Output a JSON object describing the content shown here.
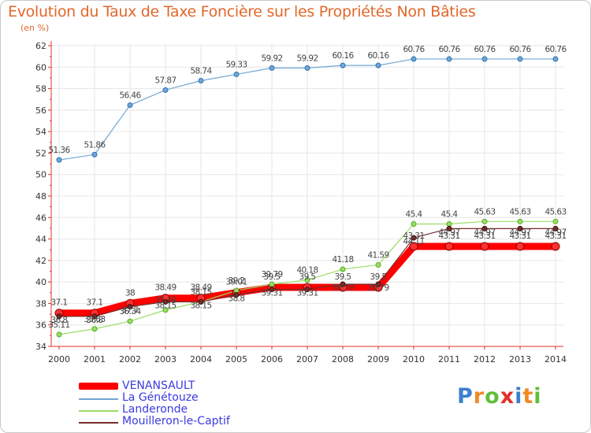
{
  "header": {
    "title": "Evolution du Taux de Taxe Foncière sur les Propriétés Non Bâties",
    "unit": "(en %)"
  },
  "logo": {
    "text": "Proxiti",
    "colors": [
      "#3d7fd0",
      "#f08a24",
      "#5fbf3a",
      "#e0312b",
      "#3d7fd0",
      "#f08a24",
      "#5fbf3a"
    ]
  },
  "chart_data": {
    "type": "line",
    "title": "Evolution du Taux de Taxe Foncière sur les Propriétés Non Bâties",
    "ylabel": "(en %)",
    "xlabel": "",
    "ylim": [
      34,
      62
    ],
    "yticks": [
      34,
      36,
      38,
      40,
      42,
      44,
      46,
      48,
      50,
      52,
      54,
      56,
      58,
      60,
      62
    ],
    "categories": [
      "2000",
      "2001",
      "2002",
      "2003",
      "2004",
      "2005",
      "2006",
      "2007",
      "2008",
      "2009",
      "2010",
      "2011",
      "2012",
      "2013",
      "2014"
    ],
    "series": [
      {
        "name": "VENANSAULT",
        "color": "#ff0000",
        "values": [
          37.1,
          37.1,
          38,
          38.49,
          38.49,
          39.01,
          39.5,
          39.5,
          39.5,
          39.5,
          43.31,
          43.31,
          43.31,
          43.31,
          43.31
        ],
        "labels": [
          "37.1",
          "37.1",
          "38",
          "38.49",
          "38.49",
          "39.01",
          "39.5",
          "39.5",
          "39.5",
          "39.5",
          "43.31",
          "43.31",
          "43.31",
          "43.31",
          "43.31"
        ]
      },
      {
        "name": "La Génétouze",
        "color": "#6fa7d6",
        "values": [
          51.36,
          51.86,
          56.46,
          57.87,
          58.74,
          59.33,
          59.92,
          59.92,
          60.16,
          60.16,
          60.76,
          60.76,
          60.76,
          60.76,
          60.76
        ],
        "labels": [
          "51.36",
          "51.86",
          "56.46",
          "57.87",
          "58.74",
          "59.33",
          "59.92",
          "59.92",
          "60.16",
          "60.16",
          "60.76",
          "60.76",
          "60.76",
          "60.76",
          "60.76"
        ]
      },
      {
        "name": "Landeronde",
        "color": "#99dd66",
        "values": [
          35.11,
          35.63,
          36.34,
          37.39,
          38.15,
          39.2,
          39.79,
          40.18,
          41.18,
          41.59,
          45.4,
          45.4,
          45.63,
          45.63,
          45.63
        ],
        "labels": [
          "35.11",
          "35.63",
          "36.34",
          "37.39",
          "38.15",
          "39.2",
          "39.79",
          "40.18",
          "41.18",
          "41.59",
          "45.4",
          "45.4",
          "45.63",
          "45.63",
          "45.63"
        ]
      },
      {
        "name": "Mouilleron-le-Captif",
        "color": "#7a2b2b",
        "values": [
          36.8,
          36.8,
          37.7,
          38.15,
          38.15,
          38.8,
          39.31,
          39.31,
          39.79,
          39.79,
          44.11,
          44.97,
          44.97,
          44.97,
          44.97
        ],
        "labels": [
          "36.8",
          "36.8",
          "37.7",
          "38.15",
          "38.15",
          "38.8",
          "39.31",
          "39.31",
          "39.79",
          "39.79",
          "44.11",
          "44.97",
          "44.97",
          "44.97",
          "44.97"
        ]
      }
    ]
  }
}
